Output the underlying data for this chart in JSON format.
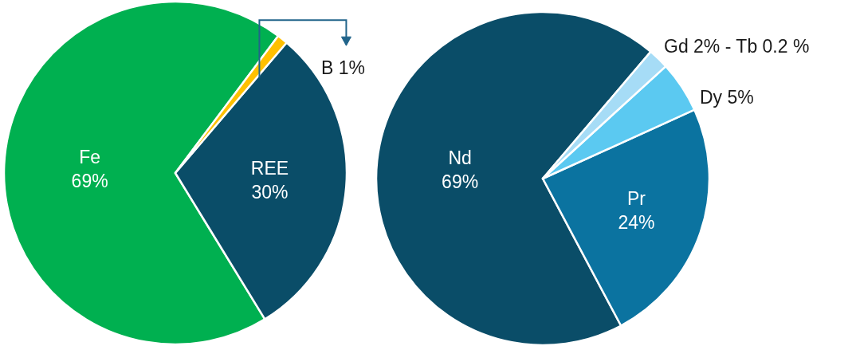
{
  "chart_data": [
    {
      "type": "pie",
      "categories": [
        "Fe",
        "REE",
        "B"
      ],
      "values": [
        69,
        30,
        1
      ],
      "value_labels": [
        "69%",
        "30%",
        "1%"
      ],
      "colors": [
        "#00b050",
        "#0a4d68",
        "#ffc000"
      ]
    },
    {
      "type": "pie",
      "categories": [
        "Nd",
        "Pr",
        "Dy",
        "Gd 2% - Tb 0.2 %"
      ],
      "values": [
        69,
        24,
        5,
        2
      ],
      "value_labels": [
        "69%",
        "24%",
        "5%",
        null
      ],
      "colors": [
        "#0a4d68",
        "#0b73a0",
        "#5bc9f1",
        "#a6dcf6"
      ]
    }
  ]
}
